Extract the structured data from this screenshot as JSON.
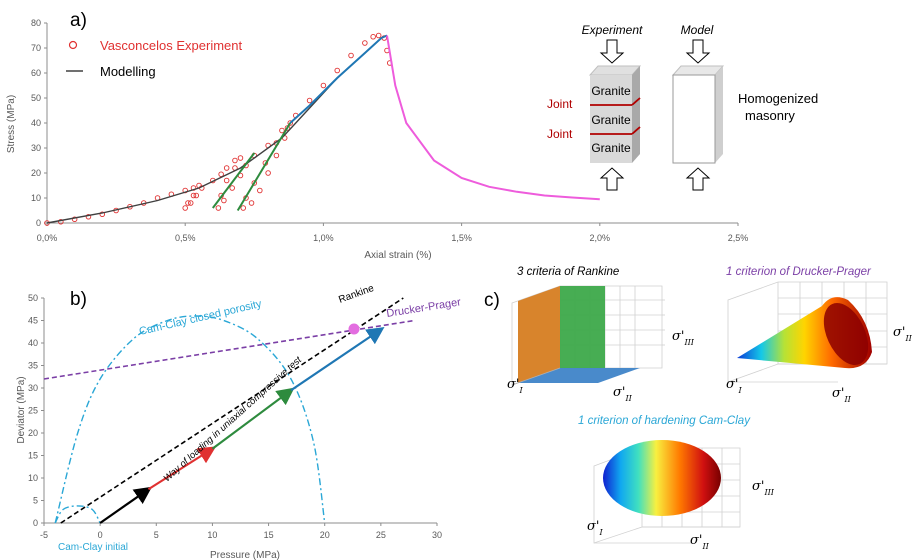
{
  "panels": {
    "a": "a)",
    "b": "b)",
    "c": "c)"
  },
  "colors": {
    "experiment": "#e03131",
    "modelling": "#404040",
    "model_blue": "#1f77b4",
    "model_green": "#2e8b3e",
    "softening": "#ee5cdc",
    "rankine": "#000000",
    "drucker_prager": "#7b3fa6",
    "cam_clay": "#2aa7d6"
  },
  "chart_data": [
    {
      "type": "scatter",
      "xlabel": "Axial strain (%)",
      "ylabel": "Stress (MPa)",
      "xlim": [
        0,
        2.5
      ],
      "ylim": [
        0,
        80
      ],
      "x_ticks": [
        "0,0%",
        "0,5%",
        "1,0%",
        "1,5%",
        "2,0%",
        "2,5%"
      ],
      "y_ticks": [
        "0",
        "10",
        "20",
        "30",
        "40",
        "50",
        "60",
        "70",
        "80"
      ],
      "legend_placement": "top-left",
      "series": [
        {
          "name": "Vasconcelos Experiment",
          "style": "open-circles",
          "x": [
            0.0,
            0.05,
            0.1,
            0.15,
            0.2,
            0.25,
            0.3,
            0.35,
            0.4,
            0.45,
            0.5,
            0.53,
            0.55,
            0.53,
            0.51,
            0.5,
            0.52,
            0.54,
            0.56,
            0.6,
            0.63,
            0.65,
            0.68,
            0.7,
            0.68,
            0.65,
            0.63,
            0.62,
            0.64,
            0.67,
            0.7,
            0.72,
            0.75,
            0.8,
            0.85,
            0.88,
            0.86,
            0.83,
            0.8,
            0.77,
            0.74,
            0.71,
            0.72,
            0.75,
            0.79,
            0.83,
            0.87,
            0.9,
            0.95,
            1.0,
            1.05,
            1.1,
            1.15,
            1.18,
            1.2,
            1.22,
            1.23,
            1.24
          ],
          "y": [
            0,
            0.5,
            1.5,
            2.5,
            3.5,
            5,
            6.5,
            8,
            10,
            11.5,
            13,
            14,
            15,
            11,
            8,
            6,
            8,
            11,
            14,
            17,
            19.5,
            22,
            25,
            26,
            22,
            17,
            11,
            6,
            9,
            14,
            19,
            23,
            27,
            31,
            37,
            40,
            34,
            27,
            20,
            13,
            8,
            6,
            10,
            16,
            24,
            32,
            38,
            43,
            49,
            55,
            61,
            67,
            72,
            74.5,
            75,
            74,
            69,
            64
          ]
        },
        {
          "name": "Modelling",
          "style": "line",
          "x": [
            0.0,
            0.2,
            0.4,
            0.55,
            0.7,
            0.85,
            0.95,
            1.05,
            1.15,
            1.21,
            1.23
          ],
          "y": [
            0,
            4,
            9,
            14,
            22,
            34,
            46,
            58,
            68,
            74,
            75
          ]
        },
        {
          "name": "",
          "style": "line",
          "color": "#1f77b4",
          "x": [
            0.88,
            0.95,
            1.05,
            1.15,
            1.21,
            1.23
          ],
          "y": [
            40,
            47,
            58,
            68,
            74,
            75
          ]
        },
        {
          "name": "",
          "style": "line",
          "color": "#2e8b3e",
          "x": [
            0.69,
            0.88
          ],
          "y": [
            5,
            40
          ]
        },
        {
          "name": "",
          "style": "line",
          "color": "#2e8b3e",
          "x": [
            0.6,
            0.75
          ],
          "y": [
            6,
            28
          ]
        },
        {
          "name": "",
          "style": "line",
          "color": "#ee5cdc",
          "x": [
            1.23,
            1.26,
            1.3,
            1.4,
            1.5,
            1.6,
            1.7,
            1.8,
            1.9,
            2.0
          ],
          "y": [
            75,
            55,
            40,
            25,
            18,
            14.5,
            12.5,
            11,
            10.2,
            9.5
          ]
        }
      ]
    },
    {
      "type": "line",
      "xlabel": "Pressure (MPa)",
      "ylabel": "Deviator (MPa)",
      "xlim": [
        -5,
        30
      ],
      "ylim": [
        0,
        50
      ],
      "x_ticks": [
        "-5",
        "0",
        "5",
        "10",
        "15",
        "20",
        "25",
        "30"
      ],
      "y_ticks": [
        "0",
        "5",
        "10",
        "15",
        "20",
        "25",
        "30",
        "35",
        "40",
        "45",
        "50"
      ],
      "series": [
        {
          "name": "Rankine",
          "style": "dashed",
          "color": "#000000",
          "x": [
            -3.5,
            27
          ],
          "y": [
            0,
            50
          ]
        },
        {
          "name": "Drucker-Prager",
          "style": "dashed",
          "color": "#7b3fa6",
          "x": [
            -5,
            28
          ],
          "y": [
            32,
            45
          ]
        },
        {
          "name": "Cam-Clay closed porosity",
          "style": "dash-dot",
          "color": "#2aa7d6",
          "x": [
            -4,
            -2,
            0,
            3,
            6,
            8.5,
            11,
            14,
            17,
            19,
            20
          ],
          "y": [
            0,
            20,
            32,
            41,
            45,
            46,
            45,
            41,
            32,
            18,
            0
          ]
        },
        {
          "name": "Cam-Clay initial",
          "style": "dash-dot",
          "color": "#2aa7d6",
          "x": [
            -4,
            -3.3,
            -2,
            -0.7,
            0
          ],
          "y": [
            0,
            3,
            3.8,
            3,
            0
          ]
        },
        {
          "name": "",
          "style": "arrow",
          "color": "#000000",
          "x": [
            0,
            4.3
          ],
          "y": [
            0,
            7.5
          ]
        },
        {
          "name": "",
          "style": "arrow",
          "color": "#e03131",
          "x": [
            4.3,
            10
          ],
          "y": [
            7.5,
            16.5
          ]
        },
        {
          "name": "",
          "style": "arrow",
          "color": "#2e8b3e",
          "x": [
            10,
            17
          ],
          "y": [
            16.5,
            29.5
          ]
        },
        {
          "name": "",
          "style": "arrow",
          "color": "#1f77b4",
          "x": [
            17,
            25
          ],
          "y": [
            29.5,
            43
          ]
        }
      ],
      "annotation": "Way of loading in uniaxial compressive test"
    }
  ],
  "schematic": {
    "experiment_title": "Experiment",
    "model_title": "Model",
    "granite": [
      "Granite",
      "Granite",
      "Granite"
    ],
    "joint": [
      "Joint",
      "Joint"
    ],
    "homogenized": [
      "Homogenized",
      "masonry"
    ]
  },
  "panel_c": {
    "rankine_title": "3 criteria of Rankine",
    "drucker_title": "1 criterion of Drucker-Prager",
    "camclay_title": "1 criterion of hardening Cam-Clay",
    "sigma_I": "σ'",
    "sub_I": "I",
    "sub_II": "II",
    "sub_III": "III"
  }
}
